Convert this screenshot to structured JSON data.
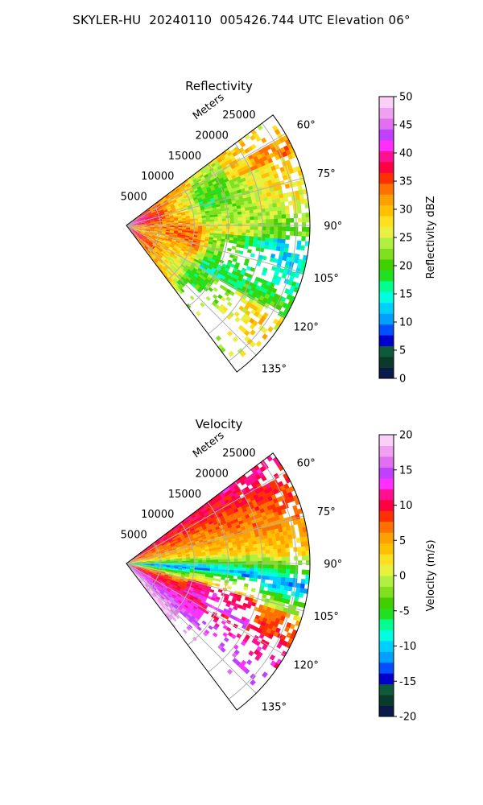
{
  "figure": {
    "title": "SKYLER-HU  20240110  005426.744 UTC Elevation 06°"
  },
  "chart_data": [
    {
      "type": "heatmap",
      "title": "Reflectivity",
      "radial_axis_label": "Meters",
      "radial_ticks": [
        5000,
        10000,
        15000,
        20000,
        25000
      ],
      "radial_range": [
        0,
        27000
      ],
      "angle_ticks": [
        "60°",
        "75°",
        "90°",
        "105°",
        "120°",
        "135°"
      ],
      "angle_range_deg": [
        53,
        143
      ],
      "grid": true,
      "colorbar": {
        "label": "Reflectivity dBZ",
        "range": [
          0,
          50
        ],
        "ticks": [
          0,
          5,
          10,
          15,
          20,
          25,
          30,
          35,
          40,
          45,
          50
        ],
        "colors": [
          "#0a1a4a",
          "#0a3a2a",
          "#0e5a3a",
          "#0000cc",
          "#0050ff",
          "#00a0ff",
          "#00d0ff",
          "#00ffe0",
          "#00ff90",
          "#20e020",
          "#40d000",
          "#80e020",
          "#b0f040",
          "#e8f040",
          "#ffe020",
          "#ffc000",
          "#ffa000",
          "#ff7000",
          "#ff3000",
          "#ff0040",
          "#ff1090",
          "#ff30ff",
          "#c040ff",
          "#e070f0",
          "#f0a0f0",
          "#fad0f8"
        ]
      },
      "field_summary": "mostly 20–30 dBZ with 35–45 dBZ near the radar along the 60°–90° edge"
    },
    {
      "type": "heatmap",
      "title": "Velocity",
      "radial_axis_label": "Meters",
      "radial_ticks": [
        5000,
        10000,
        15000,
        20000,
        25000
      ],
      "radial_range": [
        0,
        27000
      ],
      "angle_ticks": [
        "60°",
        "75°",
        "90°",
        "105°",
        "120°",
        "135°"
      ],
      "angle_range_deg": [
        53,
        143
      ],
      "grid": true,
      "colorbar": {
        "label": "Velocity (m/s)",
        "range": [
          -20,
          20
        ],
        "ticks": [
          -20,
          -15,
          -10,
          -5,
          0,
          5,
          10,
          15,
          20
        ],
        "colors": [
          "#0a1a4a",
          "#0a3a2a",
          "#0e5a3a",
          "#0000cc",
          "#0050ff",
          "#00a0ff",
          "#00d0ff",
          "#00ffe0",
          "#00ff90",
          "#20e020",
          "#40d000",
          "#80e020",
          "#b0f040",
          "#e8f040",
          "#ffe020",
          "#ffc000",
          "#ffa000",
          "#ff7000",
          "#ff3000",
          "#ff0040",
          "#ff1090",
          "#ff30ff",
          "#c040ff",
          "#e070f0",
          "#f0a0f0",
          "#fad0f8"
        ]
      },
      "field_summary": "inbound (-5 to -15 m/s) band near 90°–100°, outbound (5 to 15 m/s) on both sides"
    }
  ]
}
